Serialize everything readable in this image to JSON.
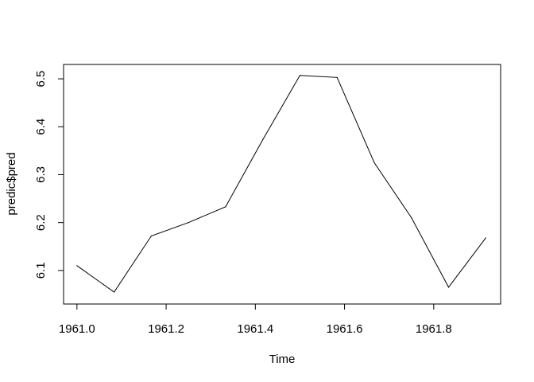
{
  "chart_data": {
    "type": "line",
    "xlabel": "Time",
    "ylabel": "predic$pred",
    "xlim": [
      1960.97,
      1961.95
    ],
    "ylim": [
      6.03,
      6.53
    ],
    "xticks": [
      1961.0,
      1961.2,
      1961.4,
      1961.6,
      1961.8
    ],
    "xtick_labels": [
      "1961.0",
      "1961.2",
      "1961.4",
      "1961.6",
      "1961.8"
    ],
    "yticks": [
      6.1,
      6.2,
      6.3,
      6.4,
      6.5
    ],
    "ytick_labels": [
      "6.1",
      "6.2",
      "6.3",
      "6.4",
      "6.5"
    ],
    "grid": false,
    "series": [
      {
        "x": [
          1961.0,
          1961.0833,
          1961.1667,
          1961.25,
          1961.3333,
          1961.4167,
          1961.5,
          1961.5833,
          1961.6667,
          1961.75,
          1961.8333,
          1961.9167
        ],
        "y": [
          6.11,
          6.055,
          6.172,
          6.2,
          6.233,
          6.373,
          6.507,
          6.503,
          6.325,
          6.21,
          6.065,
          6.168
        ],
        "color": "#000000"
      }
    ]
  }
}
